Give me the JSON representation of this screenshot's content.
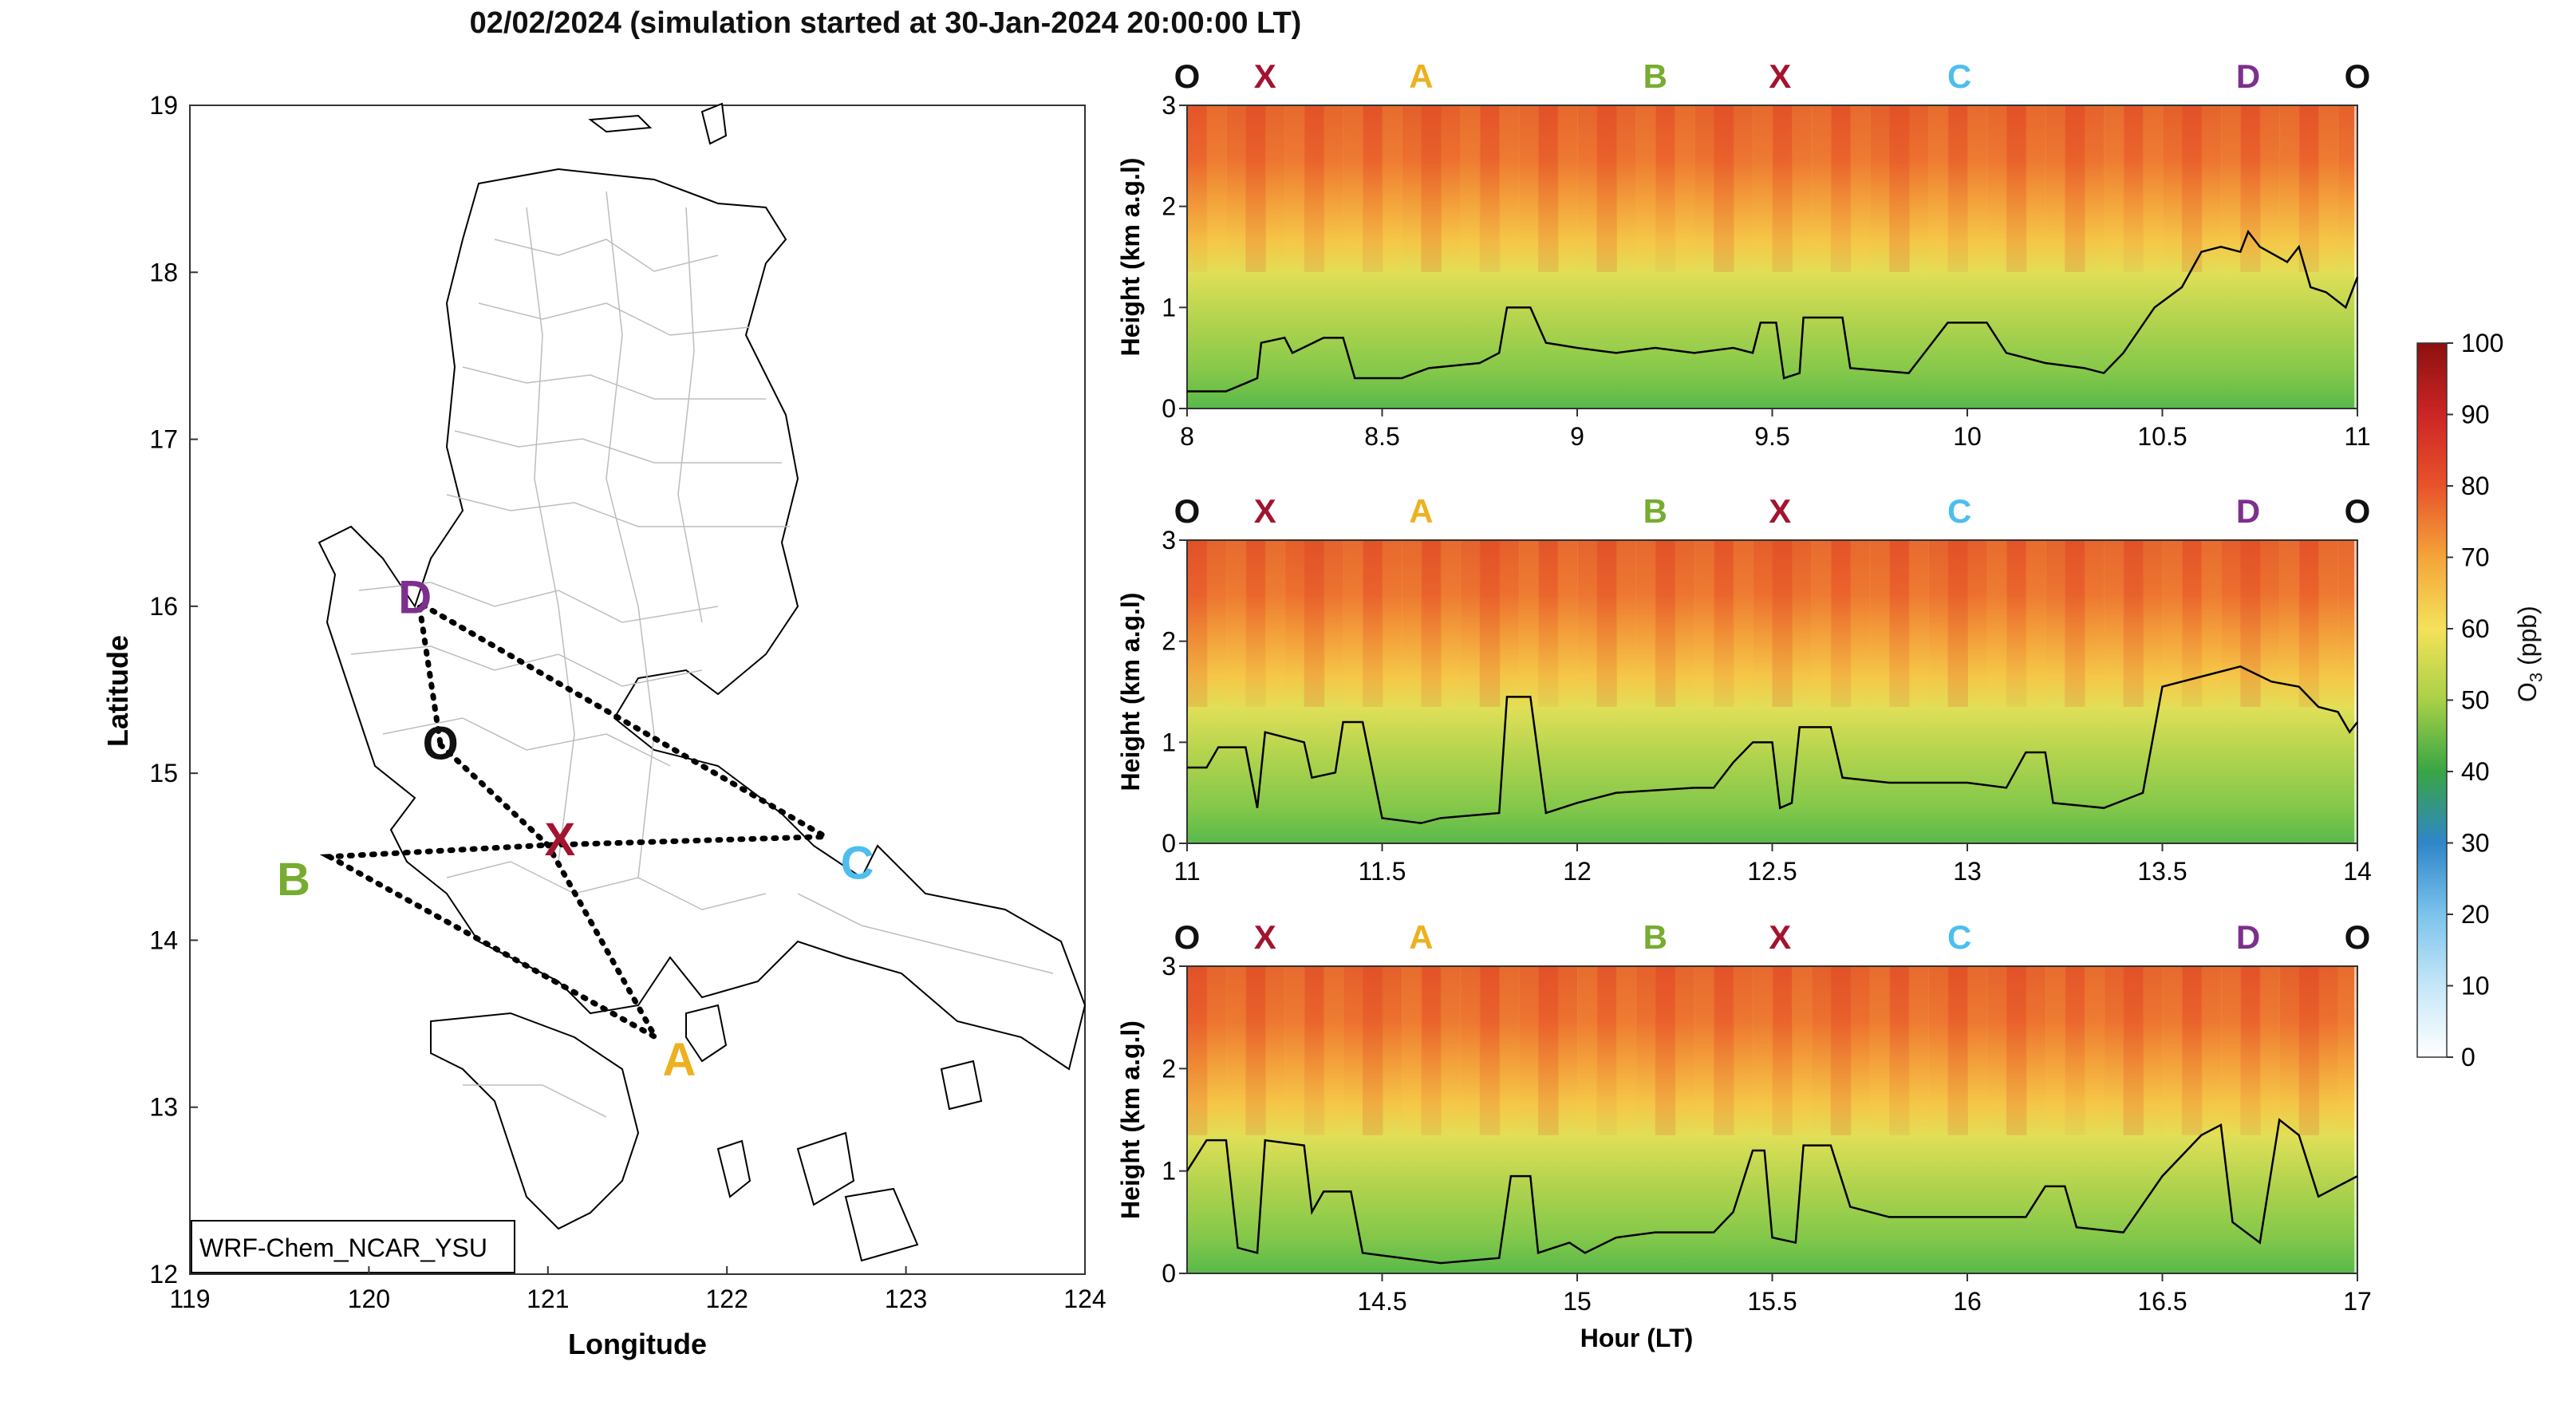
{
  "title": "02/02/2024 (simulation started at 30-Jan-2024 20:00:00 LT)",
  "colorbar": {
    "label": "O3 (ppb)",
    "label_main": "O",
    "label_sub": "3",
    "label_unit": " (ppb)",
    "ticks": [
      0,
      10,
      20,
      30,
      40,
      50,
      60,
      70,
      80,
      90,
      100
    ]
  },
  "chart_data": [
    {
      "type": "map",
      "xlabel": "Longitude",
      "ylabel": "Latitude",
      "xlim": [
        119,
        124
      ],
      "ylim": [
        12,
        19
      ],
      "xticks": [
        119,
        120,
        121,
        122,
        123,
        124
      ],
      "yticks": [
        12,
        13,
        14,
        15,
        16,
        17,
        18,
        19
      ],
      "model_label": "WRF-Chem_NCAR_YSU",
      "points": [
        {
          "name": "O",
          "lon": 120.4,
          "lat": 15.17,
          "color": "#111111"
        },
        {
          "name": "X",
          "lon": 121.0,
          "lat": 14.57,
          "color": "#a2142f"
        },
        {
          "name": "A",
          "lon": 121.6,
          "lat": 13.42,
          "color": "#edb120"
        },
        {
          "name": "B",
          "lon": 119.78,
          "lat": 14.5,
          "color": "#77ac30"
        },
        {
          "name": "C",
          "lon": 122.55,
          "lat": 14.62,
          "color": "#4dbeee"
        },
        {
          "name": "D",
          "lon": 120.28,
          "lat": 16.02,
          "color": "#7e2f8e"
        }
      ],
      "flight_track": [
        "O",
        "X",
        "A",
        "B",
        "X",
        "C",
        "D",
        "O"
      ]
    },
    {
      "type": "heatmap",
      "ylabel": "Height (km a.g.l)",
      "xlabel": "",
      "xlim": [
        8,
        11
      ],
      "ylim": [
        0,
        3
      ],
      "xticks": [
        8,
        8.5,
        9,
        9.5,
        10,
        10.5,
        11
      ],
      "yticks": [
        0,
        1,
        2,
        3
      ],
      "waypoints": [
        {
          "name": "O",
          "x": 8.0
        },
        {
          "name": "X",
          "x": 8.2
        },
        {
          "name": "A",
          "x": 8.6
        },
        {
          "name": "B",
          "x": 9.2
        },
        {
          "name": "X",
          "x": 9.52
        },
        {
          "name": "C",
          "x": 9.98
        },
        {
          "name": "D",
          "x": 10.72
        },
        {
          "name": "O",
          "x": 11.0
        }
      ],
      "blh_line": [
        [
          8.0,
          0.17
        ],
        [
          8.1,
          0.17
        ],
        [
          8.15,
          0.25
        ],
        [
          8.18,
          0.3
        ],
        [
          8.19,
          0.65
        ],
        [
          8.25,
          0.7
        ],
        [
          8.27,
          0.55
        ],
        [
          8.35,
          0.7
        ],
        [
          8.4,
          0.7
        ],
        [
          8.43,
          0.3
        ],
        [
          8.55,
          0.3
        ],
        [
          8.62,
          0.4
        ],
        [
          8.75,
          0.45
        ],
        [
          8.8,
          0.55
        ],
        [
          8.82,
          1.0
        ],
        [
          8.88,
          1.0
        ],
        [
          8.92,
          0.65
        ],
        [
          9.0,
          0.6
        ],
        [
          9.1,
          0.55
        ],
        [
          9.2,
          0.6
        ],
        [
          9.3,
          0.55
        ],
        [
          9.4,
          0.6
        ],
        [
          9.45,
          0.55
        ],
        [
          9.47,
          0.85
        ],
        [
          9.51,
          0.85
        ],
        [
          9.53,
          0.3
        ],
        [
          9.57,
          0.35
        ],
        [
          9.58,
          0.9
        ],
        [
          9.68,
          0.9
        ],
        [
          9.7,
          0.4
        ],
        [
          9.85,
          0.35
        ],
        [
          9.9,
          0.6
        ],
        [
          9.95,
          0.85
        ],
        [
          10.05,
          0.85
        ],
        [
          10.1,
          0.55
        ],
        [
          10.2,
          0.45
        ],
        [
          10.3,
          0.4
        ],
        [
          10.35,
          0.35
        ],
        [
          10.4,
          0.55
        ],
        [
          10.48,
          1.0
        ],
        [
          10.55,
          1.2
        ],
        [
          10.6,
          1.55
        ],
        [
          10.65,
          1.6
        ],
        [
          10.7,
          1.55
        ],
        [
          10.72,
          1.75
        ],
        [
          10.75,
          1.6
        ],
        [
          10.82,
          1.45
        ],
        [
          10.85,
          1.6
        ],
        [
          10.88,
          1.2
        ],
        [
          10.92,
          1.15
        ],
        [
          10.97,
          1.0
        ],
        [
          11.0,
          1.3
        ]
      ]
    },
    {
      "type": "heatmap",
      "ylabel": "Height (km a.g.l)",
      "xlabel": "",
      "xlim": [
        11,
        14
      ],
      "ylim": [
        0,
        3
      ],
      "xticks": [
        11,
        11.5,
        12,
        12.5,
        13,
        13.5,
        14
      ],
      "yticks": [
        0,
        1,
        2,
        3
      ],
      "waypoints": [
        {
          "name": "O",
          "x": 11.0
        },
        {
          "name": "X",
          "x": 11.2
        },
        {
          "name": "A",
          "x": 11.6
        },
        {
          "name": "B",
          "x": 12.2
        },
        {
          "name": "X",
          "x": 12.52
        },
        {
          "name": "C",
          "x": 12.98
        },
        {
          "name": "D",
          "x": 13.72
        },
        {
          "name": "O",
          "x": 14.0
        }
      ],
      "blh_line": [
        [
          11.0,
          0.75
        ],
        [
          11.05,
          0.75
        ],
        [
          11.08,
          0.95
        ],
        [
          11.15,
          0.95
        ],
        [
          11.18,
          0.35
        ],
        [
          11.2,
          1.1
        ],
        [
          11.3,
          1.0
        ],
        [
          11.32,
          0.65
        ],
        [
          11.38,
          0.7
        ],
        [
          11.4,
          1.2
        ],
        [
          11.45,
          1.2
        ],
        [
          11.5,
          0.25
        ],
        [
          11.6,
          0.2
        ],
        [
          11.65,
          0.25
        ],
        [
          11.8,
          0.3
        ],
        [
          11.82,
          1.45
        ],
        [
          11.88,
          1.45
        ],
        [
          11.92,
          0.3
        ],
        [
          12.0,
          0.4
        ],
        [
          12.1,
          0.5
        ],
        [
          12.3,
          0.55
        ],
        [
          12.35,
          0.55
        ],
        [
          12.4,
          0.8
        ],
        [
          12.45,
          1.0
        ],
        [
          12.5,
          1.0
        ],
        [
          12.52,
          0.35
        ],
        [
          12.55,
          0.4
        ],
        [
          12.57,
          1.15
        ],
        [
          12.65,
          1.15
        ],
        [
          12.68,
          0.65
        ],
        [
          12.8,
          0.6
        ],
        [
          13.0,
          0.6
        ],
        [
          13.1,
          0.55
        ],
        [
          13.15,
          0.9
        ],
        [
          13.2,
          0.9
        ],
        [
          13.22,
          0.4
        ],
        [
          13.35,
          0.35
        ],
        [
          13.45,
          0.5
        ],
        [
          13.5,
          1.55
        ],
        [
          13.6,
          1.65
        ],
        [
          13.7,
          1.75
        ],
        [
          13.78,
          1.6
        ],
        [
          13.85,
          1.55
        ],
        [
          13.9,
          1.35
        ],
        [
          13.95,
          1.3
        ],
        [
          13.98,
          1.1
        ],
        [
          14.0,
          1.2
        ]
      ]
    },
    {
      "type": "heatmap",
      "ylabel": "Height (km a.g.l)",
      "xlabel": "Hour (LT)",
      "xlim": [
        14,
        17
      ],
      "ylim": [
        0,
        3
      ],
      "xticks": [
        14.5,
        15,
        15.5,
        16,
        16.5,
        17
      ],
      "yticks": [
        0,
        1,
        2,
        3
      ],
      "waypoints": [
        {
          "name": "O",
          "x": 14.0
        },
        {
          "name": "X",
          "x": 14.2
        },
        {
          "name": "A",
          "x": 14.6
        },
        {
          "name": "B",
          "x": 15.2
        },
        {
          "name": "X",
          "x": 15.52
        },
        {
          "name": "C",
          "x": 15.98
        },
        {
          "name": "D",
          "x": 16.72
        },
        {
          "name": "O",
          "x": 17.0
        }
      ],
      "blh_line": [
        [
          14.0,
          1.0
        ],
        [
          14.05,
          1.3
        ],
        [
          14.1,
          1.3
        ],
        [
          14.13,
          0.25
        ],
        [
          14.18,
          0.2
        ],
        [
          14.2,
          1.3
        ],
        [
          14.3,
          1.25
        ],
        [
          14.32,
          0.6
        ],
        [
          14.35,
          0.8
        ],
        [
          14.42,
          0.8
        ],
        [
          14.45,
          0.2
        ],
        [
          14.55,
          0.15
        ],
        [
          14.65,
          0.1
        ],
        [
          14.8,
          0.15
        ],
        [
          14.83,
          0.95
        ],
        [
          14.88,
          0.95
        ],
        [
          14.9,
          0.2
        ],
        [
          14.98,
          0.3
        ],
        [
          15.02,
          0.2
        ],
        [
          15.1,
          0.35
        ],
        [
          15.2,
          0.4
        ],
        [
          15.35,
          0.4
        ],
        [
          15.4,
          0.6
        ],
        [
          15.45,
          1.2
        ],
        [
          15.48,
          1.2
        ],
        [
          15.5,
          0.35
        ],
        [
          15.56,
          0.3
        ],
        [
          15.58,
          1.25
        ],
        [
          15.65,
          1.25
        ],
        [
          15.7,
          0.65
        ],
        [
          15.8,
          0.55
        ],
        [
          16.0,
          0.55
        ],
        [
          16.15,
          0.55
        ],
        [
          16.2,
          0.85
        ],
        [
          16.25,
          0.85
        ],
        [
          16.28,
          0.45
        ],
        [
          16.4,
          0.4
        ],
        [
          16.5,
          0.95
        ],
        [
          16.6,
          1.35
        ],
        [
          16.65,
          1.45
        ],
        [
          16.68,
          0.5
        ],
        [
          16.75,
          0.3
        ],
        [
          16.8,
          1.5
        ],
        [
          16.85,
          1.35
        ],
        [
          16.9,
          0.75
        ],
        [
          16.95,
          0.85
        ],
        [
          17.0,
          0.95
        ]
      ]
    }
  ]
}
